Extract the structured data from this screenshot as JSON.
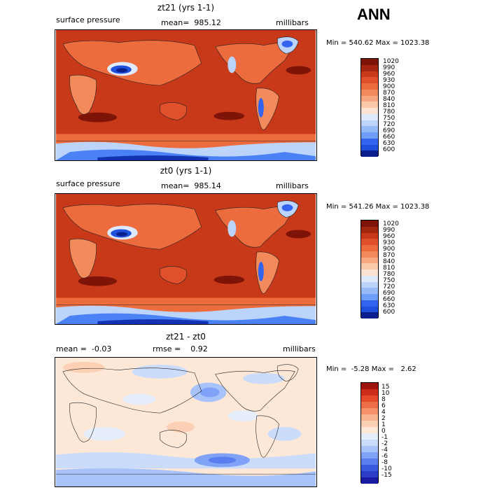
{
  "header": {
    "season": "ANN"
  },
  "colors": {
    "pressure_scale": [
      "#0a1e8c",
      "#1432b4",
      "#1e50dc",
      "#3264f0",
      "#4a82f6",
      "#6e9ef8",
      "#96baf8",
      "#bcd4fa",
      "#dfe9fc",
      "#fde3d4",
      "#fbc8aa",
      "#f8a880",
      "#f38a5c",
      "#ec6c3e",
      "#e0502a",
      "#c8391a",
      "#a42611",
      "#7e1408"
    ],
    "diff_scale": [
      "#1a1aa0",
      "#2a3cc8",
      "#3a5ade",
      "#5a7ef0",
      "#80a2f6",
      "#a8c2fa",
      "#cbdcfb",
      "#e6eefb",
      "#fde8d8",
      "#fbd0b4",
      "#f8b28e",
      "#f4906a",
      "#ee6c46",
      "#e44a2a",
      "#cc2c18",
      "#a01410"
    ]
  },
  "panels": [
    {
      "id": "top",
      "title": "zt21 (yrs 1-1)",
      "left_label": "surface pressure",
      "mean_text": "mean=  985.12",
      "units": "millibars",
      "minmax": "Min = 540.62 Max = 1023.38",
      "legend_levels": [
        "1020",
        "990",
        "960",
        "930",
        "900",
        "870",
        "840",
        "810",
        "780",
        "750",
        "720",
        "690",
        "660",
        "630",
        "600"
      ]
    },
    {
      "id": "middle",
      "title": "zt0 (yrs 1-1)",
      "left_label": "surface pressure",
      "mean_text": "mean=  985.14",
      "units": "millibars",
      "minmax": "Min = 541.26 Max = 1023.38",
      "legend_levels": [
        "1020",
        "990",
        "960",
        "930",
        "900",
        "870",
        "840",
        "810",
        "780",
        "750",
        "720",
        "690",
        "660",
        "630",
        "600"
      ]
    },
    {
      "id": "bottom",
      "title": "zt21 - zt0",
      "left_label": "mean =  -0.03",
      "mean_text": "rmse =    0.92",
      "units": "millibars",
      "minmax": "Min =  -5.28 Max =   2.62",
      "legend_levels": [
        "15",
        "10",
        "8",
        "6",
        "4",
        "2",
        "1",
        "0",
        "-1",
        "-2",
        "-4",
        "-6",
        "-8",
        "-10",
        "-15"
      ]
    }
  ]
}
